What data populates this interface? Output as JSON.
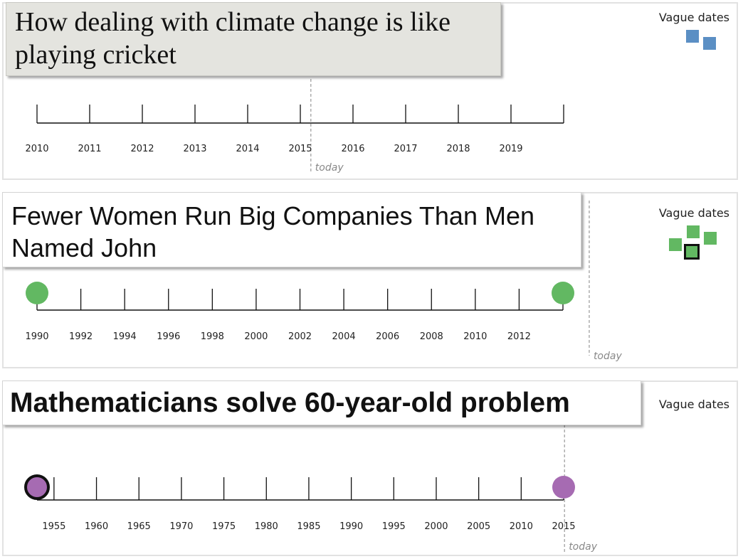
{
  "panels": [
    {
      "title_line1": "How dealing with climate change is like",
      "title_line2": "playing cricket",
      "legend_label": "Vague dates",
      "legend_color": "#5b8fc4",
      "axis": {
        "ticks": [
          {
            "label": "2010",
            "value": 2010
          },
          {
            "label": "2011",
            "value": 2011
          },
          {
            "label": "2012",
            "value": 2012
          },
          {
            "label": "2013",
            "value": 2013
          },
          {
            "label": "2014",
            "value": 2014
          },
          {
            "label": "2015",
            "value": 2015
          },
          {
            "label": "2016",
            "value": 2016
          },
          {
            "label": "2017",
            "value": 2017
          },
          {
            "label": "2018",
            "value": 2018
          },
          {
            "label": "2019",
            "value": 2019
          },
          {
            "label": "",
            "value": 2020
          }
        ],
        "range": [
          2010,
          2020
        ],
        "today_value": 2015.2,
        "today_label": "today"
      },
      "markers": []
    },
    {
      "title_line1": "Fewer Women Run Big Companies Than Men",
      "title_line2": "Named John",
      "legend_label": "Vague dates",
      "legend_color": "#62b862",
      "axis": {
        "ticks": [
          {
            "label": "1990",
            "value": 1990
          },
          {
            "label": "1992",
            "value": 1992
          },
          {
            "label": "1994",
            "value": 1994
          },
          {
            "label": "1996",
            "value": 1996
          },
          {
            "label": "1998",
            "value": 1998
          },
          {
            "label": "2000",
            "value": 2000
          },
          {
            "label": "2002",
            "value": 2002
          },
          {
            "label": "2004",
            "value": 2004
          },
          {
            "label": "2006",
            "value": 2006
          },
          {
            "label": "2008",
            "value": 2008
          },
          {
            "label": "2010",
            "value": 2010
          },
          {
            "label": "2012",
            "value": 2012
          },
          {
            "label": "",
            "value": 2014
          }
        ],
        "range": [
          1990,
          2014
        ],
        "today_value": 2015.2,
        "today_label": "today"
      },
      "markers": [
        {
          "value": 1990,
          "color": "#62b862",
          "outlined": false
        },
        {
          "value": 2014,
          "color": "#62b862",
          "outlined": false
        }
      ]
    },
    {
      "title_line1": "Mathematicians solve 60-year-old problem",
      "legend_label": "Vague dates",
      "axis": {
        "ticks": [
          {
            "label": "",
            "value": 1953
          },
          {
            "label": "1955",
            "value": 1955
          },
          {
            "label": "1960",
            "value": 1960
          },
          {
            "label": "1965",
            "value": 1965
          },
          {
            "label": "1970",
            "value": 1970
          },
          {
            "label": "1975",
            "value": 1975
          },
          {
            "label": "1980",
            "value": 1980
          },
          {
            "label": "1985",
            "value": 1985
          },
          {
            "label": "1990",
            "value": 1990
          },
          {
            "label": "1995",
            "value": 1995
          },
          {
            "label": "2000",
            "value": 2000
          },
          {
            "label": "2005",
            "value": 2005
          },
          {
            "label": "2010",
            "value": 2010
          },
          {
            "label": "2015",
            "value": 2015
          }
        ],
        "range": [
          1953,
          2015
        ],
        "today_value": 2015.1,
        "today_label": "today"
      },
      "markers": [
        {
          "value": 1953,
          "color": "#a66bb2",
          "outlined": true
        },
        {
          "value": 2015,
          "color": "#a66bb2",
          "outlined": false
        }
      ]
    }
  ]
}
